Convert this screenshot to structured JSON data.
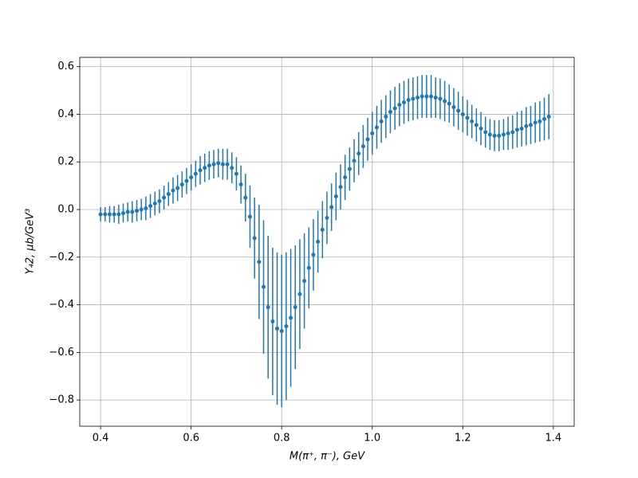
{
  "chart_data": {
    "type": "errorbar",
    "xlabel": "M(π⁺, π⁻), GeV",
    "ylabel": "Y₄2, μb/GeV³",
    "color": "#1f77b4",
    "grid": true,
    "x": [
      0.4,
      0.41,
      0.42,
      0.43,
      0.44,
      0.45,
      0.46,
      0.47,
      0.48,
      0.49,
      0.5,
      0.51,
      0.52,
      0.53,
      0.54,
      0.55,
      0.56,
      0.57,
      0.58,
      0.59,
      0.6,
      0.61,
      0.62,
      0.63,
      0.64,
      0.65,
      0.66,
      0.67,
      0.68,
      0.69,
      0.7,
      0.71,
      0.72,
      0.73,
      0.74,
      0.75,
      0.76,
      0.77,
      0.78,
      0.79,
      0.8,
      0.81,
      0.82,
      0.83,
      0.84,
      0.85,
      0.86,
      0.87,
      0.88,
      0.89,
      0.9,
      0.91,
      0.92,
      0.93,
      0.94,
      0.95,
      0.96,
      0.97,
      0.98,
      0.99,
      1.0,
      1.01,
      1.02,
      1.03,
      1.04,
      1.05,
      1.06,
      1.07,
      1.08,
      1.09,
      1.1,
      1.11,
      1.12,
      1.13,
      1.14,
      1.15,
      1.16,
      1.17,
      1.18,
      1.19,
      1.2,
      1.21,
      1.22,
      1.23,
      1.24,
      1.25,
      1.26,
      1.27,
      1.28,
      1.29,
      1.3,
      1.31,
      1.32,
      1.33,
      1.34,
      1.35,
      1.36,
      1.37,
      1.38,
      1.39
    ],
    "values": [
      -0.02,
      -0.02,
      -0.02,
      -0.02,
      -0.02,
      -0.015,
      -0.01,
      -0.01,
      -0.005,
      0.0,
      0.005,
      0.015,
      0.025,
      0.035,
      0.05,
      0.065,
      0.08,
      0.09,
      0.105,
      0.12,
      0.135,
      0.15,
      0.165,
      0.175,
      0.185,
      0.19,
      0.195,
      0.19,
      0.19,
      0.175,
      0.15,
      0.105,
      0.05,
      -0.03,
      -0.12,
      -0.22,
      -0.325,
      -0.41,
      -0.47,
      -0.5,
      -0.51,
      -0.49,
      -0.455,
      -0.41,
      -0.355,
      -0.3,
      -0.245,
      -0.19,
      -0.135,
      -0.085,
      -0.035,
      0.01,
      0.055,
      0.095,
      0.135,
      0.17,
      0.205,
      0.235,
      0.265,
      0.295,
      0.32,
      0.345,
      0.37,
      0.39,
      0.41,
      0.425,
      0.44,
      0.45,
      0.46,
      0.465,
      0.47,
      0.475,
      0.475,
      0.475,
      0.47,
      0.465,
      0.455,
      0.445,
      0.43,
      0.415,
      0.4,
      0.385,
      0.37,
      0.355,
      0.34,
      0.325,
      0.315,
      0.31,
      0.31,
      0.315,
      0.32,
      0.325,
      0.335,
      0.34,
      0.35,
      0.355,
      0.365,
      0.37,
      0.38,
      0.39
    ],
    "errors": [
      0.03,
      0.03,
      0.035,
      0.035,
      0.04,
      0.04,
      0.04,
      0.045,
      0.045,
      0.045,
      0.05,
      0.05,
      0.05,
      0.05,
      0.05,
      0.05,
      0.055,
      0.055,
      0.055,
      0.055,
      0.055,
      0.055,
      0.06,
      0.06,
      0.06,
      0.06,
      0.06,
      0.065,
      0.065,
      0.065,
      0.07,
      0.08,
      0.1,
      0.13,
      0.17,
      0.24,
      0.28,
      0.3,
      0.31,
      0.32,
      0.32,
      0.31,
      0.29,
      0.26,
      0.23,
      0.2,
      0.17,
      0.15,
      0.13,
      0.12,
      0.11,
      0.1,
      0.1,
      0.095,
      0.095,
      0.09,
      0.09,
      0.09,
      0.09,
      0.09,
      0.09,
      0.09,
      0.09,
      0.09,
      0.09,
      0.09,
      0.09,
      0.09,
      0.09,
      0.09,
      0.09,
      0.09,
      0.09,
      0.09,
      0.085,
      0.085,
      0.085,
      0.08,
      0.08,
      0.08,
      0.075,
      0.075,
      0.07,
      0.07,
      0.07,
      0.065,
      0.065,
      0.065,
      0.065,
      0.065,
      0.07,
      0.07,
      0.075,
      0.075,
      0.08,
      0.08,
      0.085,
      0.085,
      0.09,
      0.095
    ],
    "xlim": [
      0.354,
      1.446
    ],
    "ylim": [
      -0.91,
      0.639
    ],
    "xticks": [
      0.4,
      0.6,
      0.8,
      {
        "value": 1,
        "label": "1.0"
      },
      1.2,
      1.4
    ],
    "yticks": [
      {
        "value": -0.8,
        "label": "−0.8"
      },
      {
        "value": -0.6,
        "label": "−0.6"
      },
      {
        "value": -0.4,
        "label": "−0.4"
      },
      {
        "value": -0.2,
        "label": "−0.2"
      },
      {
        "value": 0,
        "label": "0.0"
      },
      0.2,
      0.4,
      0.6
    ]
  }
}
